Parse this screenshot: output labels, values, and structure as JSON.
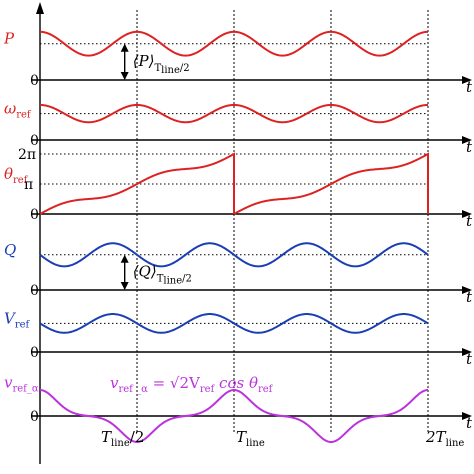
{
  "chart_data": {
    "type": "line",
    "title": "",
    "x_axis_label": "t",
    "period_count": 2,
    "period_label": "T_line",
    "x_ticks": [
      {
        "x": 0.5,
        "main": "T",
        "sub": "line",
        "suffix": "/2"
      },
      {
        "x": 1.0,
        "main": "T",
        "sub": "line",
        "suffix": ""
      },
      {
        "x": 2.0,
        "main": "2T",
        "sub": "line",
        "suffix": ""
      }
    ],
    "panels": [
      {
        "id": "P",
        "label": {
          "main": "P",
          "sub": ""
        },
        "color": "#dd2222",
        "zero_label": "0",
        "waveform": "sine",
        "mean": 0.55,
        "amplitude": 0.18,
        "cycles_per_period": 2,
        "annotation": {
          "main": "⟨P⟩",
          "sub": "T",
          "sub2": "line",
          "sub3": "/2",
          "x": 0.55
        }
      },
      {
        "id": "omega",
        "label": {
          "main": "ω",
          "sub": "ref"
        },
        "color": "#dd2222",
        "zero_label": "0",
        "waveform": "sine",
        "mean": 0.55,
        "amplitude": 0.18,
        "cycles_per_period": 2
      },
      {
        "id": "theta",
        "label": {
          "main": "θ",
          "sub": "ref"
        },
        "color": "#dd2222",
        "zero_label": "0",
        "waveform": "ramp",
        "ylim_label_top": "2π",
        "ylim_label_mid": "π"
      },
      {
        "id": "Q",
        "label": {
          "main": "Q",
          "sub": ""
        },
        "color": "#1a3fb5",
        "zero_label": "0",
        "waveform": "sine",
        "mean": 0.55,
        "amplitude": 0.18,
        "cycles_per_period": 2,
        "phase_shift": 0.25,
        "annotation": {
          "main": "⟨Q⟩",
          "sub": "T",
          "sub2": "line",
          "sub3": "/2",
          "x": 0.55
        }
      },
      {
        "id": "Vref",
        "label": {
          "main": "V",
          "sub": "ref"
        },
        "color": "#1a3fb5",
        "zero_label": "0",
        "waveform": "sine",
        "mean": 0.55,
        "amplitude": 0.18,
        "cycles_per_period": 2,
        "phase_shift": 0.25
      },
      {
        "id": "vref_alpha",
        "label": {
          "main": "v",
          "sub": "ref_α"
        },
        "color": "#bb33dd",
        "zero_label": "0",
        "waveform": "cosine-ramp",
        "equation": {
          "lhs": "v",
          "lhs_sub": "ref _α",
          "rhs": "= √2V",
          "rhs_sub": "ref",
          "tail": " cos θ",
          "tail_sub": "ref"
        }
      }
    ]
  }
}
